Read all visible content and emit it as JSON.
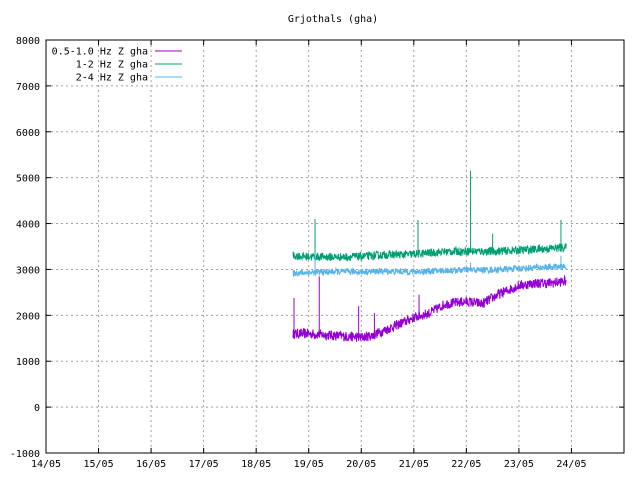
{
  "chart_data": {
    "type": "line",
    "title": "Grjothals (gha)",
    "xlabel": "",
    "ylabel": "",
    "ylim": [
      -1000,
      8000
    ],
    "xlim": [
      0,
      11
    ],
    "yticks": [
      -1000,
      0,
      1000,
      2000,
      3000,
      4000,
      5000,
      6000,
      7000,
      8000
    ],
    "ytick_labels": [
      "-1000",
      "0",
      "1000",
      "2000",
      "3000",
      "4000",
      "5000",
      "6000",
      "7000",
      "8000"
    ],
    "xticks": [
      0,
      1,
      2,
      3,
      4,
      5,
      6,
      7,
      8,
      9,
      10
    ],
    "xtick_labels": [
      "14/05",
      "15/05",
      "16/05",
      "17/05",
      "18/05",
      "19/05",
      "20/05",
      "21/05",
      "22/05",
      "23/05",
      "24/05"
    ],
    "grid": true,
    "legend_position": "top-left",
    "series": [
      {
        "name": "0.5-1.0 Hz Z gha",
        "color": "#9400d3",
        "x": [
          4.7,
          5.0,
          5.5,
          6.0,
          6.2,
          6.5,
          6.8,
          7.0,
          7.3,
          7.6,
          8.0,
          8.3,
          8.6,
          9.0,
          9.3,
          9.6,
          9.9
        ],
        "y": [
          1600,
          1600,
          1560,
          1520,
          1560,
          1700,
          1850,
          1950,
          2050,
          2250,
          2300,
          2250,
          2450,
          2650,
          2700,
          2700,
          2750
        ],
        "noise": 110,
        "spikes": [
          [
            4.72,
            2380
          ],
          [
            5.2,
            2850
          ],
          [
            5.95,
            2200
          ],
          [
            6.25,
            2050
          ],
          [
            7.1,
            2450
          ]
        ]
      },
      {
        "name": "1-2 Hz Z gha",
        "color": "#009e73",
        "x": [
          4.7,
          5.0,
          5.5,
          6.0,
          6.5,
          7.0,
          7.5,
          8.0,
          8.5,
          9.0,
          9.5,
          9.9
        ],
        "y": [
          3300,
          3280,
          3270,
          3280,
          3320,
          3330,
          3380,
          3400,
          3390,
          3420,
          3450,
          3480
        ],
        "noise": 90,
        "spikes": [
          [
            5.12,
            4100
          ],
          [
            7.08,
            4080
          ],
          [
            8.08,
            5150
          ],
          [
            8.5,
            3780
          ],
          [
            9.8,
            4080
          ]
        ]
      },
      {
        "name": "2-4 Hz Z gha",
        "color": "#56b4e9",
        "x": [
          4.7,
          5.0,
          5.5,
          6.0,
          6.5,
          7.0,
          7.5,
          8.0,
          8.5,
          9.0,
          9.5,
          9.9
        ],
        "y": [
          2920,
          2930,
          2950,
          2950,
          2960,
          2950,
          2970,
          2990,
          2990,
          3020,
          3050,
          3060
        ],
        "noise": 70,
        "spikes": [
          [
            5.12,
            3350
          ],
          [
            8.08,
            3150
          ],
          [
            9.8,
            3300
          ]
        ]
      }
    ]
  }
}
